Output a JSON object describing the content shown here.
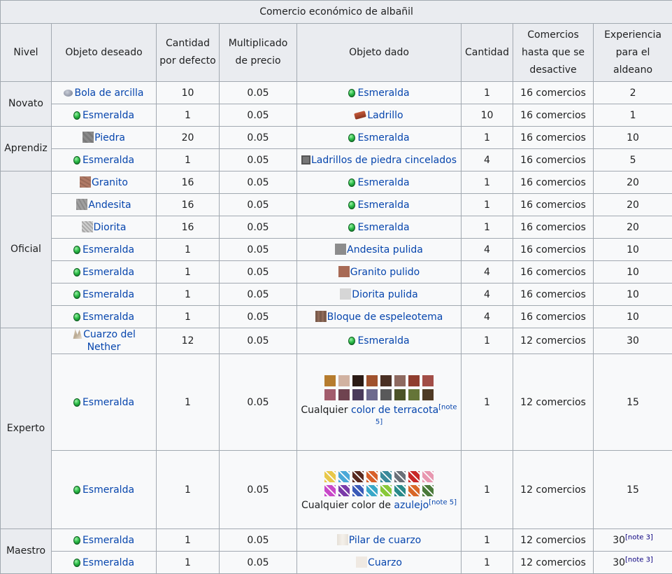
{
  "caption": "Comercio económico de albañil",
  "headers": [
    "Nivel",
    "Objeto deseado",
    "Cantidad por defecto",
    "Multiplicado de precio",
    "Objeto dado",
    "Cantidad",
    "Comercios hasta que se desactive",
    "Experiencia para el aldeano"
  ],
  "levels": {
    "novato": "Novato",
    "aprendiz": "Aprendiz",
    "oficial": "Oficial",
    "experto": "Experto",
    "maestro": "Maestro"
  },
  "rows": [
    {
      "want": "Bola de arcilla",
      "qty": "10",
      "mult": "0.05",
      "give": "Esmeralda",
      "gqty": "1",
      "trades": "16 comercios",
      "xp": "2"
    },
    {
      "want": "Esmeralda",
      "qty": "1",
      "mult": "0.05",
      "give": "Ladrillo",
      "gqty": "10",
      "trades": "16 comercios",
      "xp": "1"
    },
    {
      "want": "Piedra",
      "qty": "20",
      "mult": "0.05",
      "give": "Esmeralda",
      "gqty": "1",
      "trades": "16 comercios",
      "xp": "10"
    },
    {
      "want": "Esmeralda",
      "qty": "1",
      "mult": "0.05",
      "give": "Ladrillos de piedra cincelados",
      "gqty": "4",
      "trades": "16 comercios",
      "xp": "5"
    },
    {
      "want": "Granito",
      "qty": "16",
      "mult": "0.05",
      "give": "Esmeralda",
      "gqty": "1",
      "trades": "16 comercios",
      "xp": "20"
    },
    {
      "want": "Andesita",
      "qty": "16",
      "mult": "0.05",
      "give": "Esmeralda",
      "gqty": "1",
      "trades": "16 comercios",
      "xp": "20"
    },
    {
      "want": "Diorita",
      "qty": "16",
      "mult": "0.05",
      "give": "Esmeralda",
      "gqty": "1",
      "trades": "16 comercios",
      "xp": "20"
    },
    {
      "want": "Esmeralda",
      "qty": "1",
      "mult": "0.05",
      "give": "Andesita pulida",
      "gqty": "4",
      "trades": "16 comercios",
      "xp": "10"
    },
    {
      "want": "Esmeralda",
      "qty": "1",
      "mult": "0.05",
      "give": "Granito pulido",
      "gqty": "4",
      "trades": "16 comercios",
      "xp": "10"
    },
    {
      "want": "Esmeralda",
      "qty": "1",
      "mult": "0.05",
      "give": "Diorita pulida",
      "gqty": "4",
      "trades": "16 comercios",
      "xp": "10"
    },
    {
      "want": "Esmeralda",
      "qty": "1",
      "mult": "0.05",
      "give": "Bloque de espeleotema",
      "gqty": "4",
      "trades": "16 comercios",
      "xp": "10"
    },
    {
      "want": "Cuarzo del Nether",
      "qty": "12",
      "mult": "0.05",
      "give": "Esmeralda",
      "gqty": "1",
      "trades": "12 comercios",
      "xp": "30"
    },
    {
      "want": "Esmeralda",
      "qty": "1",
      "mult": "0.05",
      "give_prefix": "Cualquier",
      "give": "color de terracota",
      "note": "[note 5]",
      "gqty": "1",
      "trades": "12 comercios",
      "xp": "15"
    },
    {
      "want": "Esmeralda",
      "qty": "1",
      "mult": "0.05",
      "give_prefix": "Cualquier color de",
      "give": "azulejo",
      "note": "[note 5]",
      "gqty": "1",
      "trades": "12 comercios",
      "xp": "15"
    },
    {
      "want": "Esmeralda",
      "qty": "1",
      "mult": "0.05",
      "give": "Pilar de cuarzo",
      "gqty": "1",
      "trades": "12 comercios",
      "xp": "30",
      "xp_note": "[note 3]"
    },
    {
      "want": "Esmeralda",
      "qty": "1",
      "mult": "0.05",
      "give": "Cuarzo",
      "gqty": "1",
      "trades": "12 comercios",
      "xp": "30",
      "xp_note": "[note 3]"
    }
  ],
  "colors": {
    "terracotta": [
      "#b67c2e",
      "#d1b2a1",
      "#2b1b15",
      "#a0522d",
      "#4a3024",
      "#8e6a60",
      "#8f3d2e",
      "#a24e47",
      "#a25c6c",
      "#6f4350",
      "#4a3b5b",
      "#6e6a8e",
      "#59595a",
      "#4c5328",
      "#657538",
      "#4f3a24"
    ],
    "glazed": [
      "#e8c84a",
      "#4aa8d8",
      "#5a2a20",
      "#d8602a",
      "#3a8a9a",
      "#6a7078",
      "#c82828",
      "#e898b0",
      "#c848c8",
      "#7a3aa8",
      "#3a5ab8",
      "#3aa8c8",
      "#88c838",
      "#2a8a8a",
      "#d86828",
      "#4a7a3a"
    ]
  }
}
